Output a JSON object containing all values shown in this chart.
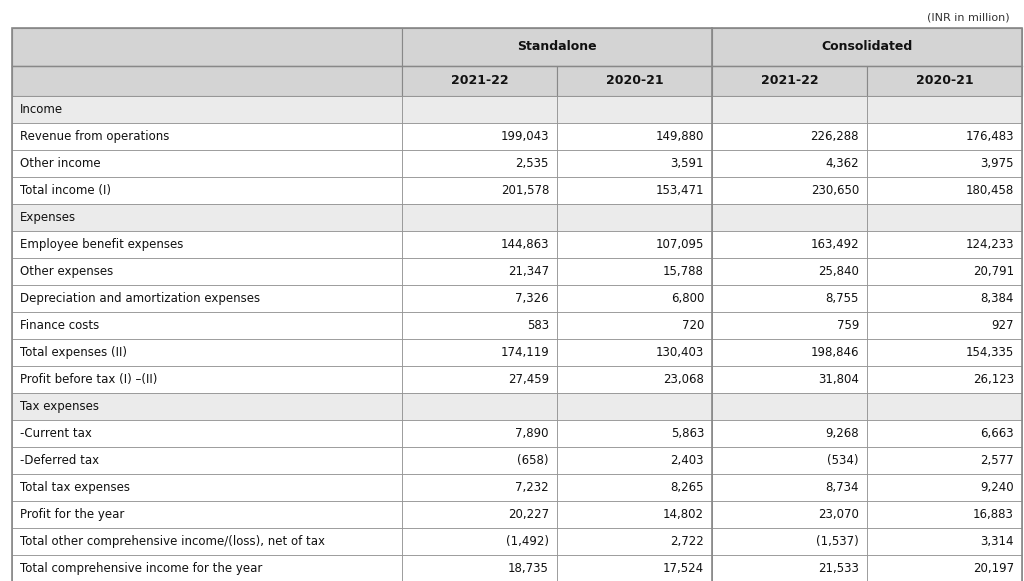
{
  "caption": "(INR in million)",
  "rows": [
    {
      "label": "Income",
      "values": [
        "",
        "",
        "",
        ""
      ],
      "is_section": true
    },
    {
      "label": "Revenue from operations",
      "values": [
        "199,043",
        "149,880",
        "226,288",
        "176,483"
      ],
      "is_section": false
    },
    {
      "label": "Other income",
      "values": [
        "2,535",
        "3,591",
        "4,362",
        "3,975"
      ],
      "is_section": false
    },
    {
      "label": "Total income (I)",
      "values": [
        "201,578",
        "153,471",
        "230,650",
        "180,458"
      ],
      "is_section": false
    },
    {
      "label": "Expenses",
      "values": [
        "",
        "",
        "",
        ""
      ],
      "is_section": true
    },
    {
      "label": "Employee benefit expenses",
      "values": [
        "144,863",
        "107,095",
        "163,492",
        "124,233"
      ],
      "is_section": false
    },
    {
      "label": "Other expenses",
      "values": [
        "21,347",
        "15,788",
        "25,840",
        "20,791"
      ],
      "is_section": false
    },
    {
      "label": "Depreciation and amortization expenses",
      "values": [
        "7,326",
        "6,800",
        "8,755",
        "8,384"
      ],
      "is_section": false
    },
    {
      "label": "Finance costs",
      "values": [
        "583",
        "720",
        "759",
        "927"
      ],
      "is_section": false
    },
    {
      "label": "Total expenses (II)",
      "values": [
        "174,119",
        "130,403",
        "198,846",
        "154,335"
      ],
      "is_section": false
    },
    {
      "label": "Profit before tax (I) –(II)",
      "values": [
        "27,459",
        "23,068",
        "31,804",
        "26,123"
      ],
      "is_section": false
    },
    {
      "label": "Tax expenses",
      "values": [
        "",
        "",
        "",
        ""
      ],
      "is_section": true
    },
    {
      "label": "-Current tax",
      "values": [
        "7,890",
        "5,863",
        "9,268",
        "6,663"
      ],
      "is_section": false
    },
    {
      "label": "-Deferred tax",
      "values": [
        "(658)",
        "2,403",
        "(534)",
        "2,577"
      ],
      "is_section": false
    },
    {
      "label": "Total tax expenses",
      "values": [
        "7,232",
        "8,265",
        "8,734",
        "9,240"
      ],
      "is_section": false
    },
    {
      "label": "Profit for the year",
      "values": [
        "20,227",
        "14,802",
        "23,070",
        "16,883"
      ],
      "is_section": false
    },
    {
      "label": "Total other comprehensive income/(loss), net of tax",
      "values": [
        "(1,492)",
        "2,722",
        "(1,537)",
        "3,314"
      ],
      "is_section": false
    },
    {
      "label": "Total comprehensive income for the year",
      "values": [
        "18,735",
        "17,524",
        "21,533",
        "20,197"
      ],
      "is_section": false
    }
  ],
  "header_bg": "#d4d4d4",
  "section_bg": "#ebebeb",
  "white_bg": "#ffffff",
  "border_color": "#888888",
  "text_color": "#111111",
  "caption_color": "#333333",
  "header_font_size": 9.0,
  "body_font_size": 8.5,
  "caption_font_size": 8.0
}
